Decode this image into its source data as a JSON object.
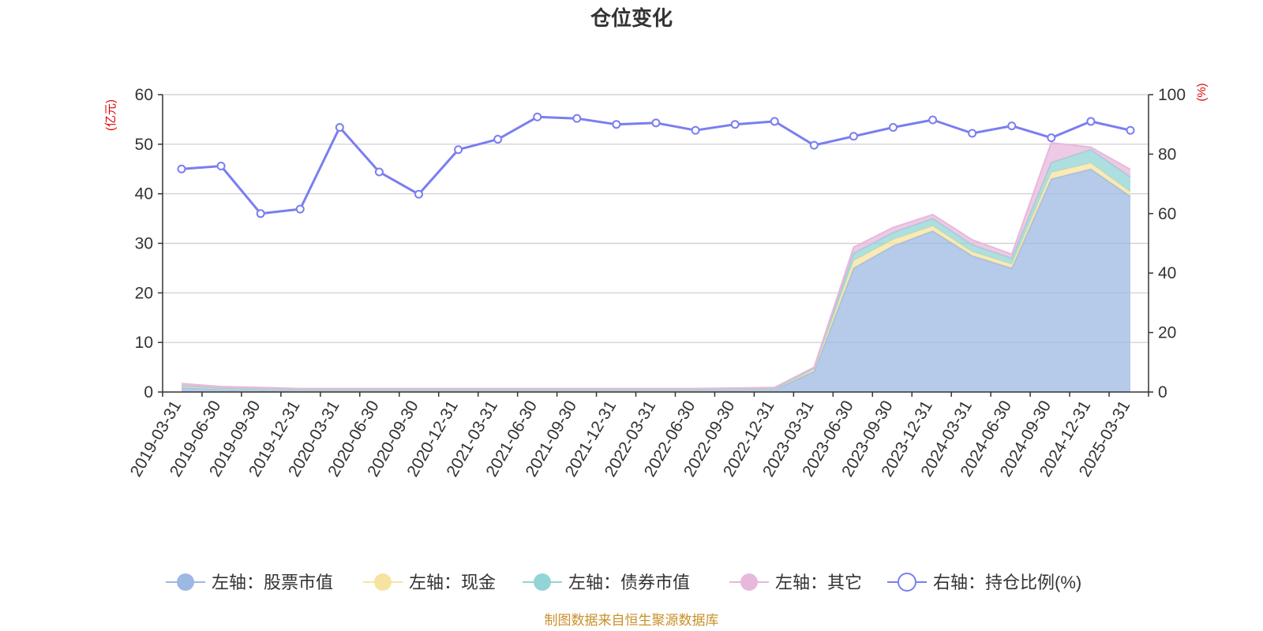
{
  "chart_data": {
    "type": "area",
    "title": "仓位变化",
    "y_left_unit": "(亿元)",
    "y_right_unit": "(%)",
    "ylim_left": [
      0,
      60
    ],
    "yticks_left": [
      0,
      10,
      20,
      30,
      40,
      50,
      60
    ],
    "ylim_right": [
      0,
      100
    ],
    "yticks_right": [
      0,
      20,
      40,
      60,
      80,
      100
    ],
    "x_labels": [
      "2019-03-31",
      "2019-06-30",
      "2019-09-30",
      "2019-12-31",
      "2020-03-31",
      "2020-06-30",
      "2020-09-30",
      "2020-12-31",
      "2021-03-31",
      "2021-06-30",
      "2021-09-30",
      "2021-12-31",
      "2022-03-31",
      "2022-06-30",
      "2022-09-30",
      "2022-12-31",
      "2023-03-31",
      "2023-06-30",
      "2023-09-30",
      "2023-12-31",
      "2024-03-31",
      "2024-06-30",
      "2024-09-30",
      "2024-12-31",
      "2025-03-31"
    ],
    "series": [
      {
        "name": "左轴：股票市值",
        "axis": "left",
        "stack": true,
        "color": "#9db8e2",
        "values": [
          0.9,
          0.6,
          0.4,
          0.3,
          0.3,
          0.3,
          0.3,
          0.3,
          0.3,
          0.3,
          0.3,
          0.3,
          0.3,
          0.3,
          0.4,
          0.5,
          4.2,
          25.0,
          29.5,
          32.5,
          27.5,
          25.0,
          43.0,
          45.0,
          39.5
        ]
      },
      {
        "name": "左轴：现金",
        "axis": "left",
        "stack": true,
        "color": "#f7e3a0",
        "values": [
          0.2,
          0.1,
          0.1,
          0.1,
          0.1,
          0.1,
          0.1,
          0.1,
          0.1,
          0.1,
          0.1,
          0.1,
          0.1,
          0.1,
          0.1,
          0.1,
          0.5,
          1.5,
          1.3,
          1.0,
          0.8,
          0.8,
          1.3,
          1.2,
          0.9
        ]
      },
      {
        "name": "左轴：债券市值",
        "axis": "left",
        "stack": true,
        "color": "#93d4d6",
        "values": [
          0.2,
          0.1,
          0.1,
          0.1,
          0.1,
          0.1,
          0.1,
          0.1,
          0.1,
          0.1,
          0.1,
          0.1,
          0.1,
          0.1,
          0.1,
          0.1,
          0.1,
          1.5,
          1.4,
          1.5,
          1.4,
          1.2,
          2.0,
          2.7,
          3.0
        ]
      },
      {
        "name": "左轴：其它",
        "axis": "left",
        "stack": true,
        "color": "#e8b8dc",
        "values": [
          0.4,
          0.3,
          0.3,
          0.2,
          0.2,
          0.2,
          0.2,
          0.2,
          0.2,
          0.2,
          0.2,
          0.2,
          0.2,
          0.2,
          0.2,
          0.2,
          0.2,
          1.2,
          1.0,
          0.8,
          1.0,
          0.8,
          4.0,
          0.5,
          1.5
        ]
      },
      {
        "name": "右轴：持仓比例(%)",
        "axis": "right",
        "type": "line",
        "color": "#7a7ef0",
        "values": [
          75.0,
          76.0,
          60.0,
          61.5,
          89.0,
          74.0,
          66.5,
          81.5,
          85.0,
          92.5,
          92.0,
          90.0,
          90.5,
          88.0,
          90.0,
          91.0,
          83.0,
          86.0,
          89.0,
          91.5,
          87.0,
          89.5,
          85.5,
          91.0,
          88.0
        ]
      }
    ],
    "legend_position": "bottom",
    "grid": true
  },
  "footer": {
    "text": "制图数据来自恒生聚源数据库",
    "color": "#c8902a"
  },
  "colors": {
    "unit_label": "#e00000",
    "axis": "#333333",
    "grid": "#cccccc"
  }
}
